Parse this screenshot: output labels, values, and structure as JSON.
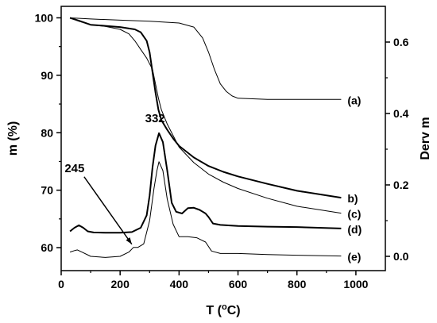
{
  "chart_data": {
    "type": "line",
    "xlabel_base": "T (",
    "xlabel_sup": "o",
    "xlabel_end": "C)",
    "ylabel_left": "m (%)",
    "ylabel_right": "Derv m",
    "xlim": [
      0,
      1100
    ],
    "ylim_left": [
      56,
      102
    ],
    "ylim_right": [
      -0.04,
      0.7
    ],
    "x_ticks": [
      0,
      200,
      400,
      600,
      800,
      1000
    ],
    "x_tick_labels": [
      "0",
      "200",
      "400",
      "600",
      "800",
      "1000"
    ],
    "y_left_ticks": [
      60,
      70,
      80,
      90,
      100
    ],
    "y_left_tick_labels": [
      "60",
      "70",
      "80",
      "90",
      "100"
    ],
    "y_right_ticks": [
      0.0,
      0.2,
      0.4,
      0.6
    ],
    "y_right_tick_labels": [
      "0.0",
      "0.2",
      "0.4",
      "0.6"
    ],
    "series": [
      {
        "name": "(a)",
        "axis": "left",
        "stroke_width": 1,
        "points": [
          [
            30,
            100
          ],
          [
            100,
            99.8
          ],
          [
            200,
            99.6
          ],
          [
            300,
            99.4
          ],
          [
            400,
            99.1
          ],
          [
            450,
            98.4
          ],
          [
            480,
            96.5
          ],
          [
            500,
            94
          ],
          [
            520,
            91
          ],
          [
            540,
            88.5
          ],
          [
            560,
            87.2
          ],
          [
            580,
            86.4
          ],
          [
            600,
            86.0
          ],
          [
            650,
            85.9
          ],
          [
            700,
            85.8
          ],
          [
            800,
            85.8
          ],
          [
            950,
            85.8
          ]
        ]
      },
      {
        "name": "b)",
        "axis": "left",
        "stroke_width": 2,
        "points": [
          [
            30,
            100
          ],
          [
            60,
            99.5
          ],
          [
            100,
            98.8
          ],
          [
            150,
            98.6
          ],
          [
            200,
            98.4
          ],
          [
            250,
            98.0
          ],
          [
            270,
            97.5
          ],
          [
            290,
            96.0
          ],
          [
            300,
            94.0
          ],
          [
            310,
            90.5
          ],
          [
            320,
            87.0
          ],
          [
            330,
            84.0
          ],
          [
            340,
            82.2
          ],
          [
            360,
            80.5
          ],
          [
            380,
            79.0
          ],
          [
            400,
            77.7
          ],
          [
            450,
            75.7
          ],
          [
            500,
            74.2
          ],
          [
            550,
            73.2
          ],
          [
            600,
            72.4
          ],
          [
            700,
            71.1
          ],
          [
            800,
            69.9
          ],
          [
            950,
            68.7
          ]
        ]
      },
      {
        "name": "(c)",
        "axis": "left",
        "stroke_width": 1,
        "points": [
          [
            30,
            100
          ],
          [
            60,
            99.4
          ],
          [
            100,
            98.8
          ],
          [
            150,
            98.5
          ],
          [
            200,
            98.0
          ],
          [
            230,
            97.2
          ],
          [
            250,
            96.0
          ],
          [
            270,
            94.5
          ],
          [
            290,
            93.0
          ],
          [
            310,
            91.0
          ],
          [
            320,
            88.5
          ],
          [
            330,
            86.0
          ],
          [
            340,
            84.0
          ],
          [
            360,
            81.5
          ],
          [
            380,
            79.5
          ],
          [
            400,
            77.5
          ],
          [
            450,
            74.8
          ],
          [
            500,
            72.8
          ],
          [
            550,
            71.4
          ],
          [
            600,
            70.3
          ],
          [
            700,
            68.6
          ],
          [
            800,
            67.2
          ],
          [
            950,
            66.0
          ]
        ]
      },
      {
        "name": "(d)",
        "axis": "right",
        "stroke_width": 2,
        "points": [
          [
            30,
            0.07
          ],
          [
            45,
            0.08
          ],
          [
            60,
            0.087
          ],
          [
            75,
            0.08
          ],
          [
            90,
            0.07
          ],
          [
            110,
            0.067
          ],
          [
            150,
            0.066
          ],
          [
            200,
            0.066
          ],
          [
            240,
            0.068
          ],
          [
            270,
            0.08
          ],
          [
            290,
            0.115
          ],
          [
            300,
            0.17
          ],
          [
            310,
            0.25
          ],
          [
            320,
            0.31
          ],
          [
            332,
            0.345
          ],
          [
            345,
            0.32
          ],
          [
            360,
            0.24
          ],
          [
            375,
            0.15
          ],
          [
            390,
            0.125
          ],
          [
            410,
            0.12
          ],
          [
            430,
            0.135
          ],
          [
            450,
            0.136
          ],
          [
            470,
            0.13
          ],
          [
            490,
            0.12
          ],
          [
            500,
            0.11
          ],
          [
            515,
            0.092
          ],
          [
            540,
            0.088
          ],
          [
            600,
            0.085
          ],
          [
            700,
            0.083
          ],
          [
            800,
            0.082
          ],
          [
            950,
            0.078
          ]
        ]
      },
      {
        "name": "(e)",
        "axis": "right",
        "stroke_width": 1,
        "points": [
          [
            30,
            0.012
          ],
          [
            45,
            0.016
          ],
          [
            55,
            0.018
          ],
          [
            70,
            0.012
          ],
          [
            100,
            0.0
          ],
          [
            150,
            -0.003
          ],
          [
            200,
            0.0
          ],
          [
            230,
            0.012
          ],
          [
            245,
            0.025
          ],
          [
            260,
            0.025
          ],
          [
            280,
            0.035
          ],
          [
            300,
            0.1
          ],
          [
            315,
            0.19
          ],
          [
            325,
            0.24
          ],
          [
            332,
            0.265
          ],
          [
            345,
            0.24
          ],
          [
            360,
            0.16
          ],
          [
            380,
            0.09
          ],
          [
            400,
            0.055
          ],
          [
            430,
            0.055
          ],
          [
            460,
            0.052
          ],
          [
            490,
            0.04
          ],
          [
            510,
            0.015
          ],
          [
            540,
            0.008
          ],
          [
            600,
            0.008
          ],
          [
            700,
            0.005
          ],
          [
            800,
            0.003
          ],
          [
            950,
            0.001
          ]
        ]
      }
    ],
    "annotations": [
      {
        "text": "332",
        "x": 332,
        "y": 0.345,
        "axis": "right"
      },
      {
        "text": "245",
        "x": 245,
        "y": 0.025,
        "axis": "right",
        "arrow": true
      }
    ]
  }
}
